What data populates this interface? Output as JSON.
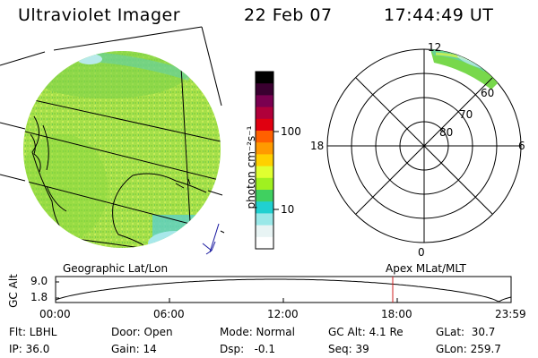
{
  "header": {
    "title": "Ultraviolet Imager",
    "date": "22 Feb 07",
    "time": "17:44:49 UT"
  },
  "colorbar": {
    "unit_label": "photon cm⁻²s⁻¹",
    "tick_100": "100",
    "tick_10": "10",
    "colors_top_to_bottom": [
      "#000000",
      "#3a0030",
      "#7a0050",
      "#b0003a",
      "#e00010",
      "#ff6000",
      "#ff9a00",
      "#ffd000",
      "#e0ff30",
      "#a0f020",
      "#40d060",
      "#20d0d0",
      "#9ae8e8",
      "#e8f4f4",
      "#ffffff"
    ]
  },
  "polar": {
    "mlt_top": "12",
    "mlt_right": "6",
    "mlt_left": "18",
    "mlt_bottom": "0",
    "lat_60": "60",
    "lat_70": "70",
    "lat_80": "80"
  },
  "orbit": {
    "left_title": "Geographic Lat/Lon",
    "right_title": "Apex  MLat/MLT",
    "y_axis_label": "GC Alt",
    "y_top": "9.0",
    "y_bottom": "1.8",
    "x_ticks": [
      "00:00",
      "06:00",
      "12:00",
      "18:00",
      "23:59"
    ],
    "marker_color": "#d02020"
  },
  "info": {
    "flt": "Flt: LBHL",
    "ip": "IP: 36.0",
    "door": "Door: Open",
    "gain": "Gain: 14",
    "mode": "Mode: Normal",
    "dsp": "Dsp:   -0.1",
    "gcalt": "GC Alt: 4.1 Re",
    "seq": "Seq: 39",
    "glat": "GLat:  30.7",
    "glon": "GLon: 259.7"
  }
}
